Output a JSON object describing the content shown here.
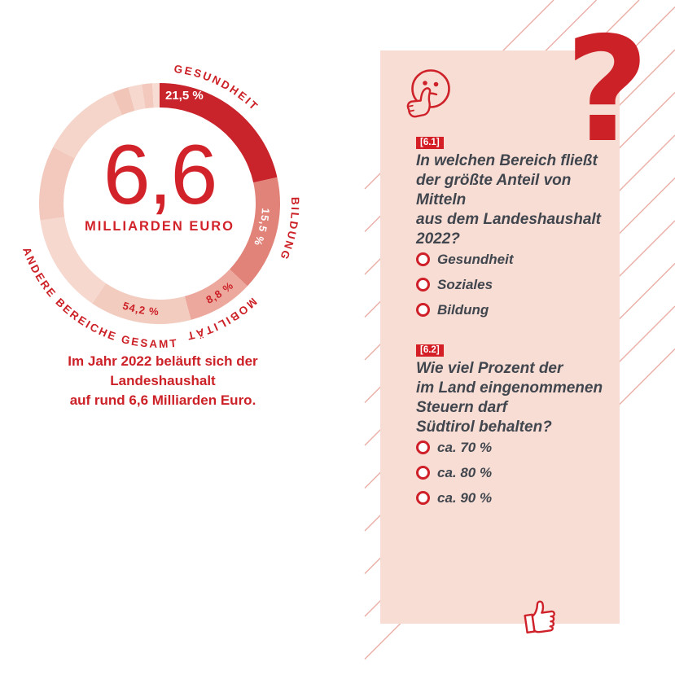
{
  "colors": {
    "red": "#cc2127",
    "panel_bg": "#f7ddd4",
    "hatch_line": "#e9aea6",
    "text_dark": "#41464e",
    "badge_bg": "#d41f27"
  },
  "chart_data": {
    "type": "donut",
    "center_value": "6,6",
    "center_label": "MILLIARDEN EURO",
    "caption_lines": [
      "Im Jahr 2022 beläuft sich der Landeshaushalt",
      "auf rund 6,6 Milliarden Euro."
    ],
    "segments": [
      {
        "label": "GESUNDHEIT",
        "value": 21.5,
        "pct_label": "21,5 %",
        "color": "#c9242b",
        "label_angle": 26,
        "flip": false,
        "pct_style": "straight"
      },
      {
        "label": "BILDUNG",
        "value": 15.5,
        "pct_label": "15,5 %",
        "color": "#e2837a",
        "label_angle": 101,
        "flip": false,
        "pct_angle": 103,
        "pct_style": "white"
      },
      {
        "label": "MOBILITÄT",
        "value": 8.8,
        "pct_label": "8,8 %",
        "color": "#eda89d",
        "label_angle": 152,
        "flip": false,
        "pct_angle": 146,
        "pct_style": "red"
      },
      {
        "label": "ANDERE BEREICHE GESAMT",
        "value": 54.2,
        "pct_label": "54,2 %",
        "color": "#f3ccc0",
        "label_angle": 212,
        "flip": true,
        "pct_angle": 190,
        "pct_style": "red",
        "sub_segments": [
          {
            "from": 164.88,
            "to": 214,
            "color": "#f3ccc0"
          },
          {
            "from": 214,
            "to": 262,
            "color": "#f6d8cf"
          },
          {
            "from": 262,
            "to": 298,
            "color": "#f2c9bc"
          },
          {
            "from": 298,
            "to": 337,
            "color": "#f5d4ca"
          },
          {
            "from": 337,
            "to": 345,
            "color": "#f1c6b9"
          },
          {
            "from": 345,
            "to": 351.5,
            "color": "#f6d8cf"
          },
          {
            "from": 351.5,
            "to": 356.5,
            "color": "#f2c9bc"
          },
          {
            "from": 356.5,
            "to": 360,
            "color": "#f7dcd4"
          }
        ]
      }
    ]
  },
  "quiz": {
    "question_mark_glyph": "?",
    "questions": [
      {
        "id": "[6.1]",
        "lines": [
          "In welchen Bereich fließt",
          "der größte Anteil von Mitteln",
          "aus dem Landeshaushalt",
          "2022?"
        ],
        "options": [
          "Gesundheit",
          "Soziales",
          "Bildung"
        ]
      },
      {
        "id": "[6.2]",
        "lines": [
          "Wie viel Prozent der",
          "im Land eingenommenen",
          "Steuern darf",
          "Südtirol behalten?"
        ],
        "options": [
          "ca. 70 %",
          "ca. 80 %",
          "ca. 90 %"
        ]
      }
    ]
  },
  "icons": {
    "top_panel_icon": "thinking-face-icon",
    "bottom_panel_icon": "thumbs-up-icon"
  }
}
